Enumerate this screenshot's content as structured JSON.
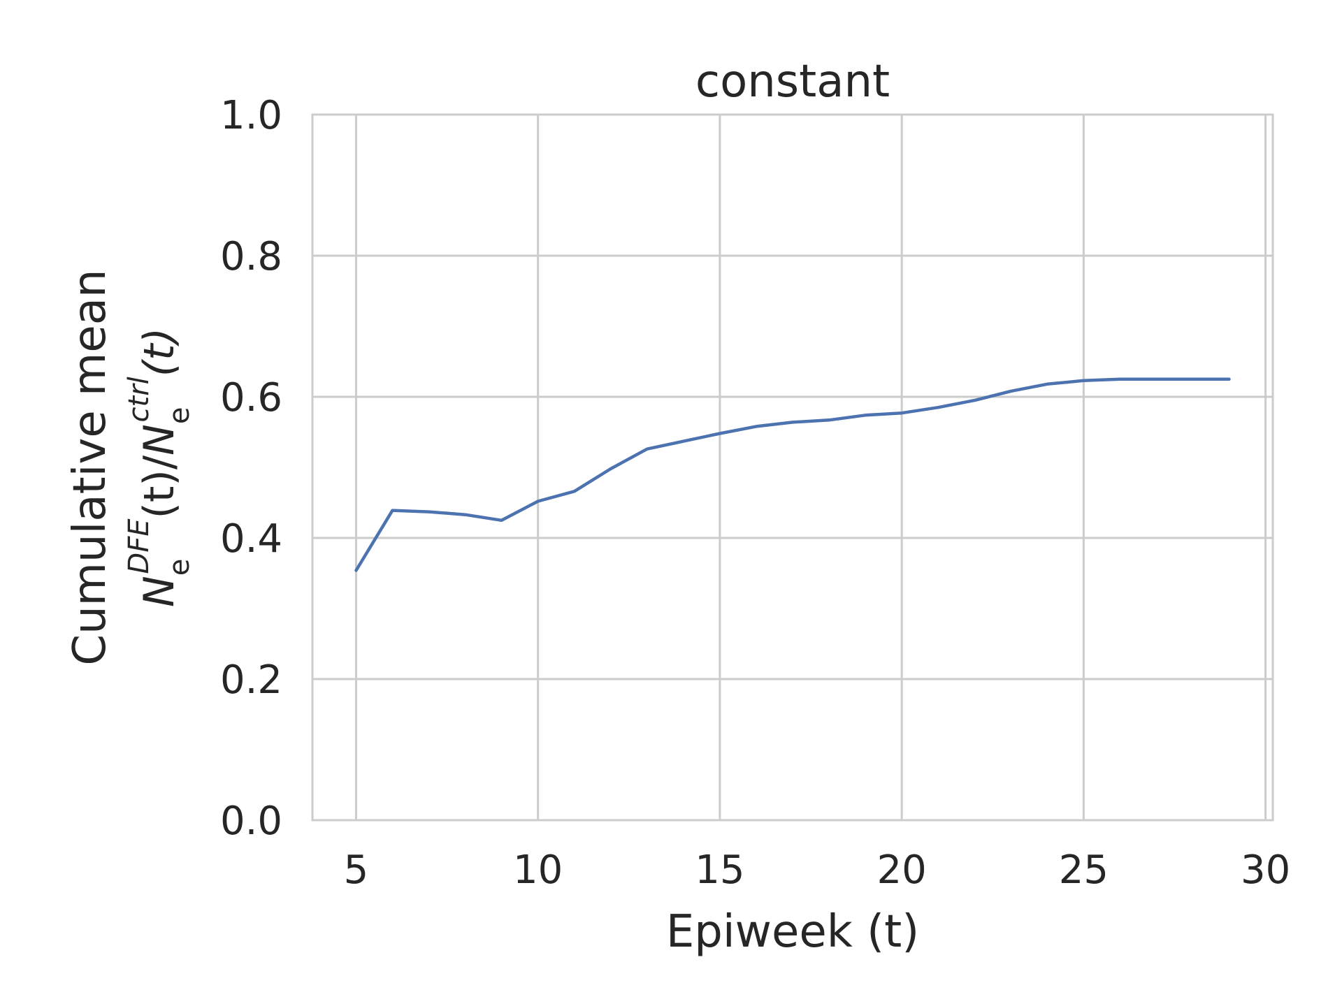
{
  "chart_data": {
    "type": "line",
    "title": "constant",
    "xlabel": "Epiweek (t)",
    "ylabel": {
      "line1": "Cumulative mean",
      "line2_parts": {
        "n1": "N",
        "n1_sub": "e",
        "n1_sup": "DFE",
        "mid": "(t)/",
        "n2": "N",
        "n2_sub": "e",
        "n2_sup": "ctrl",
        "end": "(t)"
      }
    },
    "xlim": [
      3.8,
      30.2
    ],
    "ylim": [
      0.0,
      1.0
    ],
    "xticks": [
      5,
      10,
      15,
      20,
      25,
      30
    ],
    "yticks": [
      0.0,
      0.2,
      0.4,
      0.6,
      0.8,
      1.0
    ],
    "xtick_labels": [
      "5",
      "10",
      "15",
      "20",
      "25",
      "30"
    ],
    "ytick_labels": [
      "0.0",
      "0.2",
      "0.4",
      "0.6",
      "0.8",
      "1.0"
    ],
    "grid": true,
    "series": [
      {
        "color": "#4c72b0",
        "x": [
          5,
          6,
          7,
          8,
          9,
          10,
          11,
          12,
          13,
          14,
          15,
          16,
          17,
          18,
          19,
          20,
          21,
          22,
          23,
          24,
          25,
          26,
          27,
          28,
          29
        ],
        "y": [
          0.354,
          0.439,
          0.437,
          0.433,
          0.425,
          0.452,
          0.466,
          0.498,
          0.526,
          0.537,
          0.548,
          0.558,
          0.564,
          0.567,
          0.574,
          0.577,
          0.585,
          0.595,
          0.608,
          0.618,
          0.623,
          0.625,
          0.625,
          0.625,
          0.625
        ]
      }
    ]
  }
}
